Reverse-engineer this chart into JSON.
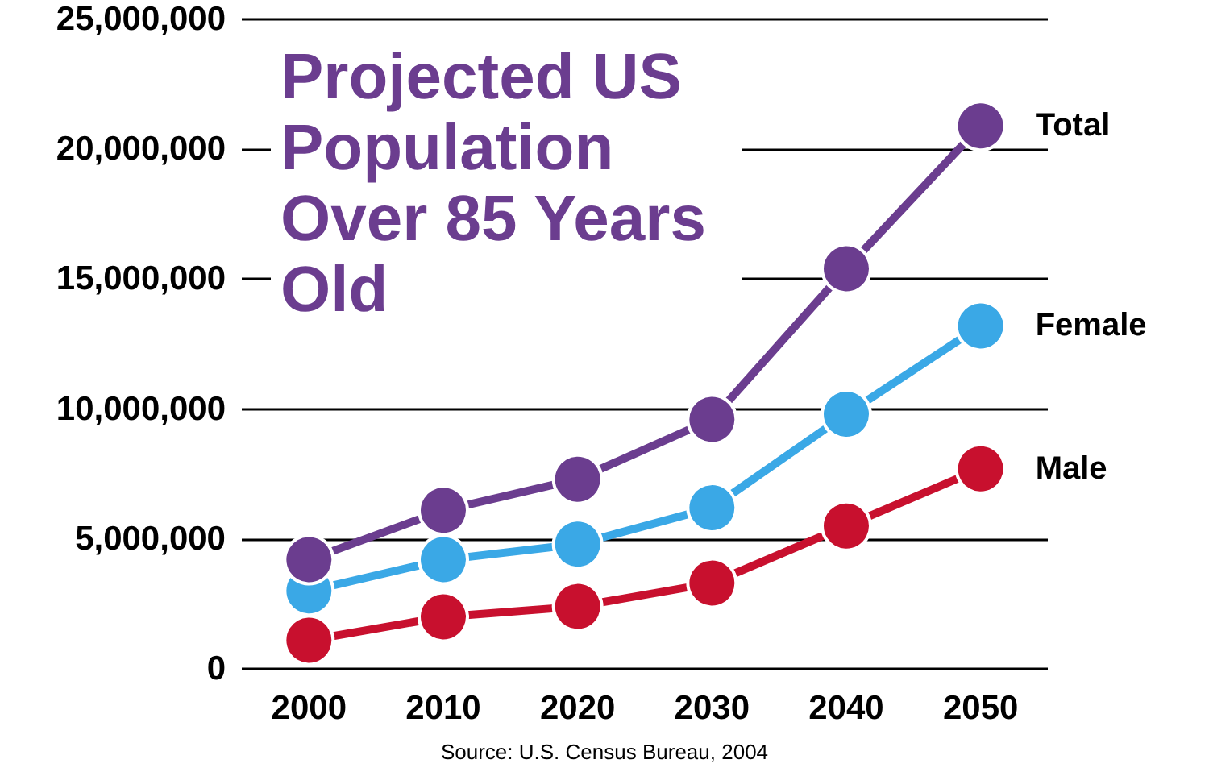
{
  "chart_data": {
    "type": "line",
    "title": "Projected US Population Over 85 Years Old",
    "annotations": [
      "Source: U.S. Census Bureau, 2004"
    ],
    "categories": [
      "2000",
      "2010",
      "2020",
      "2030",
      "2040",
      "2050"
    ],
    "series": [
      {
        "name": "Total",
        "color": "#6b3d8f",
        "values": [
          4200000,
          6100000,
          7300000,
          9600000,
          15400000,
          20900000
        ]
      },
      {
        "name": "Female",
        "color": "#3aa8e6",
        "values": [
          3000000,
          4200000,
          4800000,
          6200000,
          9800000,
          13200000
        ]
      },
      {
        "name": "Male",
        "color": "#c8102e",
        "values": [
          1100000,
          2000000,
          2400000,
          3300000,
          5500000,
          7700000
        ]
      }
    ],
    "ylim": [
      0,
      25000000
    ],
    "yticks": [
      0,
      {
        "value": 5000000,
        "label": "5,000,000"
      },
      {
        "value": 10000000,
        "label": "10,000,000"
      },
      {
        "value": 15000000,
        "label": "15,000,000"
      },
      {
        "value": 20000000,
        "label": "20,000,000"
      },
      {
        "value": 25000000,
        "label": "25,000,000"
      }
    ],
    "grid": "y",
    "legend": false,
    "marker": "circle",
    "line_style": "solid"
  }
}
